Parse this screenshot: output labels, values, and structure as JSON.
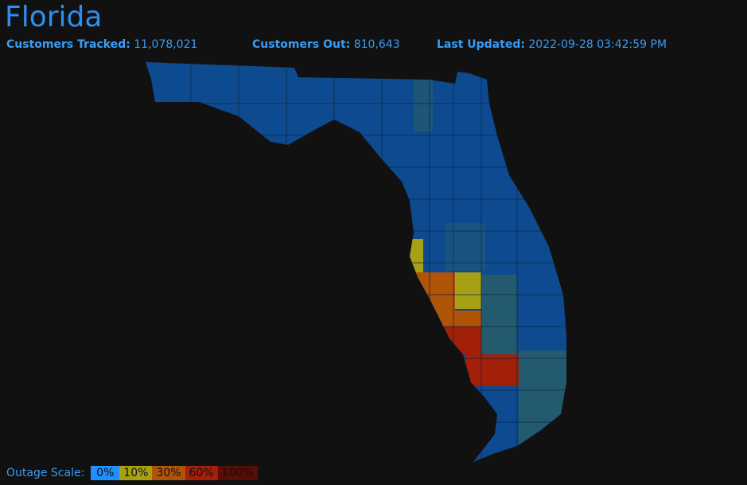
{
  "header": {
    "title": "Florida"
  },
  "stats": [
    {
      "label": "Customers Tracked:",
      "value": "11,078,021"
    },
    {
      "label": "Customers Out:",
      "value": "810,643"
    },
    {
      "label": "Last Updated:",
      "value": "2022-09-28 03:42:59 PM"
    }
  ],
  "legend": {
    "label": "Outage Scale:",
    "items": [
      "0%",
      "10%",
      "30%",
      "60%",
      "100%"
    ]
  }
}
